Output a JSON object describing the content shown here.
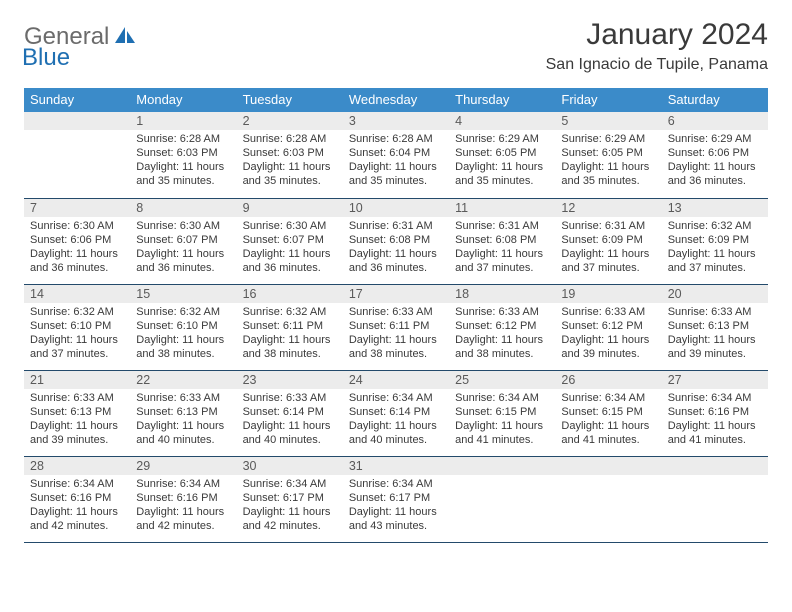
{
  "logo": {
    "general": "General",
    "blue": "Blue"
  },
  "title": "January 2024",
  "location": "San Ignacio de Tupile, Panama",
  "colors": {
    "header_bg": "#3b8bc9",
    "header_text": "#ffffff",
    "daynum_bg": "#ececec",
    "cell_border": "#234a6b",
    "body_text": "#3a3a3a",
    "logo_gray": "#6b6b6b",
    "logo_blue": "#1f6fb2"
  },
  "weekdays": [
    "Sunday",
    "Monday",
    "Tuesday",
    "Wednesday",
    "Thursday",
    "Friday",
    "Saturday"
  ],
  "weeks": [
    [
      {
        "blank": true
      },
      {
        "n": "1",
        "sunrise": "6:28 AM",
        "sunset": "6:03 PM",
        "daylight": "11 hours and 35 minutes."
      },
      {
        "n": "2",
        "sunrise": "6:28 AM",
        "sunset": "6:03 PM",
        "daylight": "11 hours and 35 minutes."
      },
      {
        "n": "3",
        "sunrise": "6:28 AM",
        "sunset": "6:04 PM",
        "daylight": "11 hours and 35 minutes."
      },
      {
        "n": "4",
        "sunrise": "6:29 AM",
        "sunset": "6:05 PM",
        "daylight": "11 hours and 35 minutes."
      },
      {
        "n": "5",
        "sunrise": "6:29 AM",
        "sunset": "6:05 PM",
        "daylight": "11 hours and 35 minutes."
      },
      {
        "n": "6",
        "sunrise": "6:29 AM",
        "sunset": "6:06 PM",
        "daylight": "11 hours and 36 minutes."
      }
    ],
    [
      {
        "n": "7",
        "sunrise": "6:30 AM",
        "sunset": "6:06 PM",
        "daylight": "11 hours and 36 minutes."
      },
      {
        "n": "8",
        "sunrise": "6:30 AM",
        "sunset": "6:07 PM",
        "daylight": "11 hours and 36 minutes."
      },
      {
        "n": "9",
        "sunrise": "6:30 AM",
        "sunset": "6:07 PM",
        "daylight": "11 hours and 36 minutes."
      },
      {
        "n": "10",
        "sunrise": "6:31 AM",
        "sunset": "6:08 PM",
        "daylight": "11 hours and 36 minutes."
      },
      {
        "n": "11",
        "sunrise": "6:31 AM",
        "sunset": "6:08 PM",
        "daylight": "11 hours and 37 minutes."
      },
      {
        "n": "12",
        "sunrise": "6:31 AM",
        "sunset": "6:09 PM",
        "daylight": "11 hours and 37 minutes."
      },
      {
        "n": "13",
        "sunrise": "6:32 AM",
        "sunset": "6:09 PM",
        "daylight": "11 hours and 37 minutes."
      }
    ],
    [
      {
        "n": "14",
        "sunrise": "6:32 AM",
        "sunset": "6:10 PM",
        "daylight": "11 hours and 37 minutes."
      },
      {
        "n": "15",
        "sunrise": "6:32 AM",
        "sunset": "6:10 PM",
        "daylight": "11 hours and 38 minutes."
      },
      {
        "n": "16",
        "sunrise": "6:32 AM",
        "sunset": "6:11 PM",
        "daylight": "11 hours and 38 minutes."
      },
      {
        "n": "17",
        "sunrise": "6:33 AM",
        "sunset": "6:11 PM",
        "daylight": "11 hours and 38 minutes."
      },
      {
        "n": "18",
        "sunrise": "6:33 AM",
        "sunset": "6:12 PM",
        "daylight": "11 hours and 38 minutes."
      },
      {
        "n": "19",
        "sunrise": "6:33 AM",
        "sunset": "6:12 PM",
        "daylight": "11 hours and 39 minutes."
      },
      {
        "n": "20",
        "sunrise": "6:33 AM",
        "sunset": "6:13 PM",
        "daylight": "11 hours and 39 minutes."
      }
    ],
    [
      {
        "n": "21",
        "sunrise": "6:33 AM",
        "sunset": "6:13 PM",
        "daylight": "11 hours and 39 minutes."
      },
      {
        "n": "22",
        "sunrise": "6:33 AM",
        "sunset": "6:13 PM",
        "daylight": "11 hours and 40 minutes."
      },
      {
        "n": "23",
        "sunrise": "6:33 AM",
        "sunset": "6:14 PM",
        "daylight": "11 hours and 40 minutes."
      },
      {
        "n": "24",
        "sunrise": "6:34 AM",
        "sunset": "6:14 PM",
        "daylight": "11 hours and 40 minutes."
      },
      {
        "n": "25",
        "sunrise": "6:34 AM",
        "sunset": "6:15 PM",
        "daylight": "11 hours and 41 minutes."
      },
      {
        "n": "26",
        "sunrise": "6:34 AM",
        "sunset": "6:15 PM",
        "daylight": "11 hours and 41 minutes."
      },
      {
        "n": "27",
        "sunrise": "6:34 AM",
        "sunset": "6:16 PM",
        "daylight": "11 hours and 41 minutes."
      }
    ],
    [
      {
        "n": "28",
        "sunrise": "6:34 AM",
        "sunset": "6:16 PM",
        "daylight": "11 hours and 42 minutes."
      },
      {
        "n": "29",
        "sunrise": "6:34 AM",
        "sunset": "6:16 PM",
        "daylight": "11 hours and 42 minutes."
      },
      {
        "n": "30",
        "sunrise": "6:34 AM",
        "sunset": "6:17 PM",
        "daylight": "11 hours and 42 minutes."
      },
      {
        "n": "31",
        "sunrise": "6:34 AM",
        "sunset": "6:17 PM",
        "daylight": "11 hours and 43 minutes."
      },
      {
        "blank": true
      },
      {
        "blank": true
      },
      {
        "blank": true
      }
    ]
  ],
  "labels": {
    "sunrise": "Sunrise:",
    "sunset": "Sunset:",
    "daylight": "Daylight:"
  }
}
